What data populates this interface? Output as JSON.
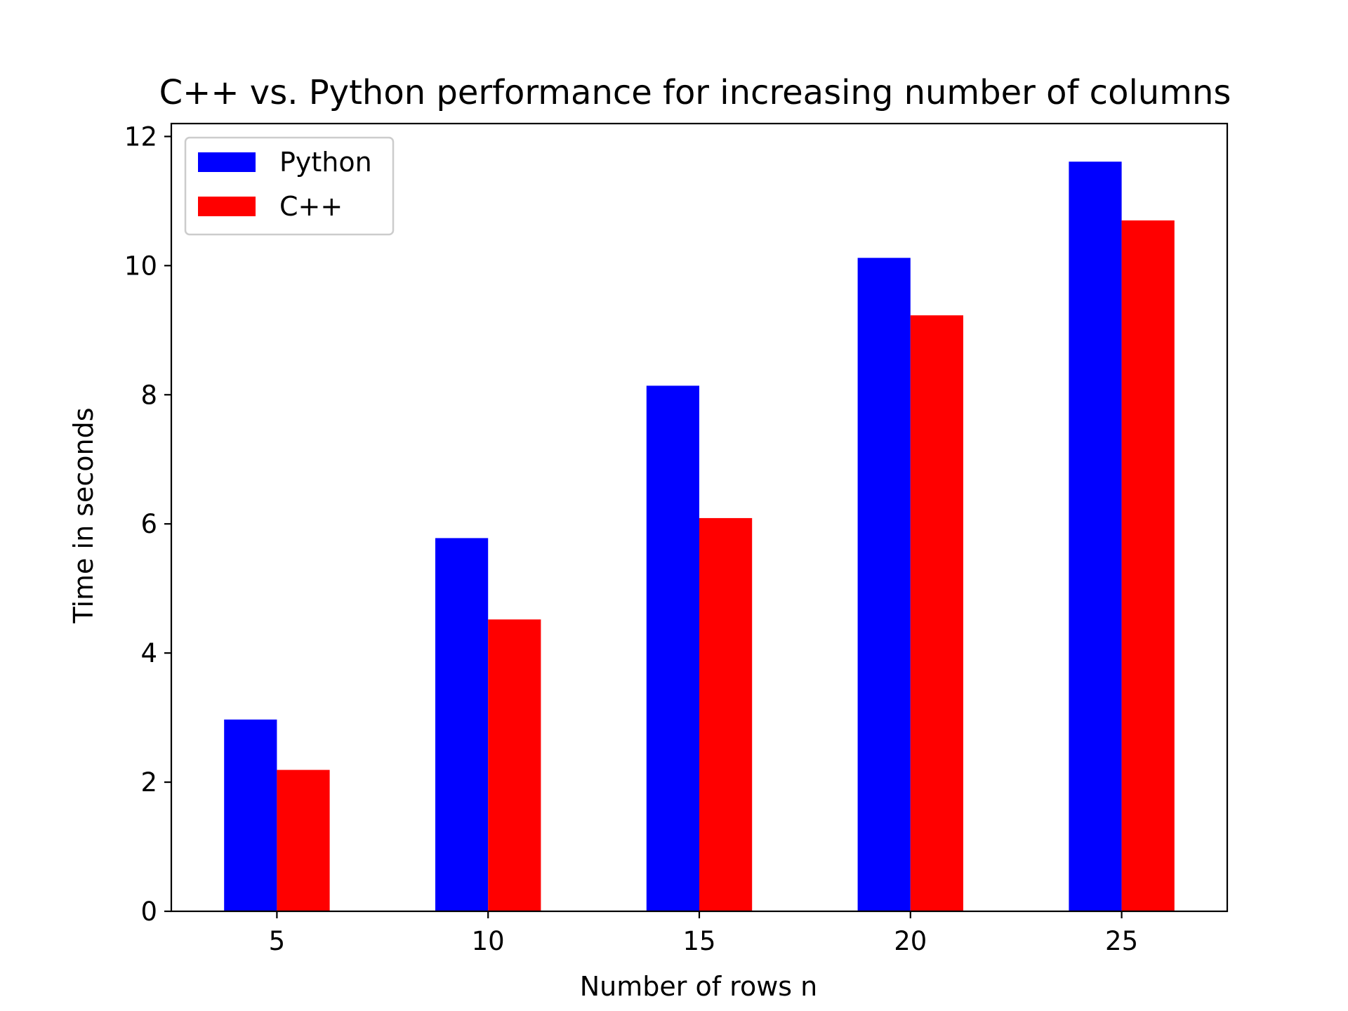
{
  "chart_data": {
    "type": "bar",
    "title": "C++ vs. Python performance for increasing number of columns",
    "xlabel": "Number of rows n",
    "ylabel": "Time in seconds",
    "categories": [
      "5",
      "10",
      "15",
      "20",
      "25"
    ],
    "x": [
      5,
      10,
      15,
      20,
      25
    ],
    "xlim": [
      2.5,
      27.5
    ],
    "ylim": [
      0,
      12.2
    ],
    "yticks": [
      0,
      2,
      4,
      6,
      8,
      10,
      12
    ],
    "grid": false,
    "legend_position": "upper-left",
    "series": [
      {
        "name": "Python",
        "color": "#0000ff",
        "values": [
          2.97,
          5.78,
          8.14,
          10.12,
          11.61
        ]
      },
      {
        "name": "C++",
        "color": "#ff0000",
        "values": [
          2.19,
          4.52,
          6.09,
          9.23,
          10.7
        ]
      }
    ]
  }
}
